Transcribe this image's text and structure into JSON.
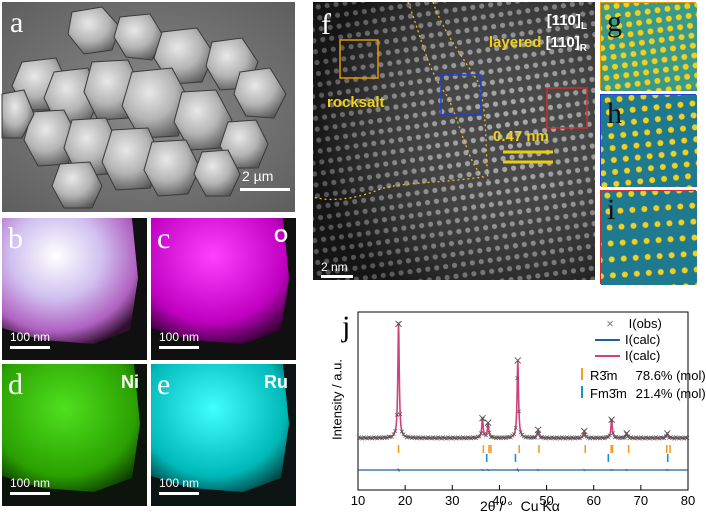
{
  "panels": {
    "a": {
      "label": "a",
      "scale_bar": "2 µm"
    },
    "b": {
      "label": "b",
      "scale_bar": "100 nm"
    },
    "c": {
      "label": "c",
      "element": "O",
      "scale_bar": "100 nm",
      "color": "#e000d8"
    },
    "d": {
      "label": "d",
      "element": "Ni",
      "scale_bar": "100 nm",
      "color": "#33c400"
    },
    "e": {
      "label": "e",
      "element": "Ru",
      "scale_bar": "100 nm",
      "color": "#00d8d8"
    },
    "f": {
      "label": "f",
      "zone_axis_L": "[110]",
      "zone_axis_L_sub": "L",
      "zone_axis_R_prefix": "layered ",
      "zone_axis_R": "[110]",
      "zone_axis_R_sub": "R",
      "rocksalt_label": "rocksalt",
      "spacing_label": "0.47 nm",
      "scale_bar": "2 nm",
      "box_colors": {
        "rocksalt": "#e09a00",
        "interface": "#1f3fd8",
        "layered": "#c83030"
      }
    },
    "g": {
      "label": "g"
    },
    "h": {
      "label": "h"
    },
    "i": {
      "label": "i"
    },
    "j": {
      "label": "j"
    }
  },
  "chart_data": {
    "type": "line",
    "title": "",
    "xlabel": "2θ / °  Cu Kα",
    "ylabel": "Intensity / a.u.",
    "xlim": [
      10,
      80
    ],
    "xticks": [
      10,
      20,
      30,
      40,
      50,
      60,
      70,
      80
    ],
    "grid": false,
    "legend": [
      {
        "symbol": "×",
        "label": "I(obs)",
        "color": "#7a7a7a"
      },
      {
        "symbol": "line",
        "label": "I(calc)",
        "color": "#1f5fa8"
      },
      {
        "symbol": "line",
        "label": "I(calc)",
        "color": "#d0407a"
      }
    ],
    "phases": [
      {
        "name": "R3̄m",
        "fraction": "78.6% (mol)",
        "color": "#f0a020",
        "reflections": [
          18.6,
          36.6,
          37.8,
          38.2,
          44.2,
          48.4,
          58.2,
          63.7,
          64.0,
          67.4,
          75.5,
          76.2
        ]
      },
      {
        "name": "Fm3̄m",
        "fraction": "21.4% (mol)",
        "color": "#1f8fd0",
        "reflections": [
          37.3,
          43.4,
          63.1,
          75.7
        ]
      }
    ],
    "peaks": [
      {
        "x": 18.6,
        "height": 1.0
      },
      {
        "x": 36.4,
        "height": 0.17
      },
      {
        "x": 37.6,
        "height": 0.13
      },
      {
        "x": 43.9,
        "height": 0.68
      },
      {
        "x": 48.2,
        "height": 0.07
      },
      {
        "x": 58.0,
        "height": 0.06
      },
      {
        "x": 63.8,
        "height": 0.16
      },
      {
        "x": 67.0,
        "height": 0.04
      },
      {
        "x": 75.6,
        "height": 0.04
      }
    ]
  }
}
